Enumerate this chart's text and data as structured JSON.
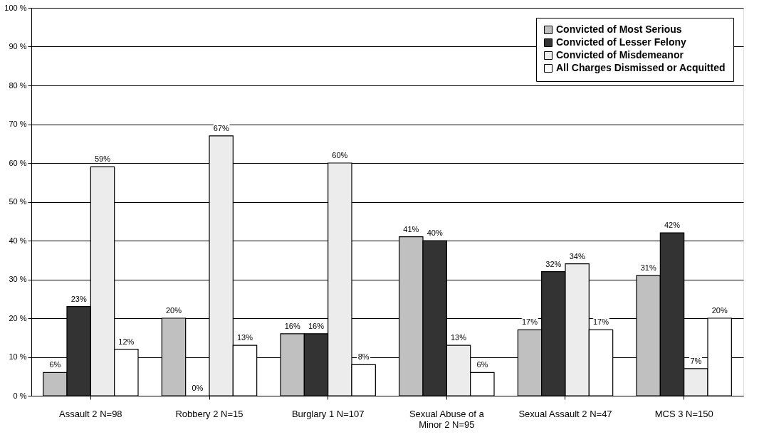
{
  "chart_data": {
    "type": "bar",
    "categories": [
      "Assault 2 N=98",
      "Robbery 2 N=15",
      "Burglary 1 N=107",
      "Sexual Abuse of a Minor 2 N=95",
      "Sexual Assault 2 N=47",
      "MCS 3 N=150"
    ],
    "series": [
      {
        "name": "Convicted of Most Serious",
        "color": "#c0c0c0",
        "values": [
          6,
          20,
          16,
          41,
          17,
          31
        ],
        "value_labels": [
          "6%",
          "20%",
          "16%",
          "41%",
          "17%",
          "31%"
        ]
      },
      {
        "name": "Convicted of Lesser Felony",
        "color": "#333333",
        "values": [
          23,
          0,
          16,
          40,
          32,
          42
        ],
        "value_labels": [
          "23%",
          "0%",
          "16%",
          "40%",
          "32%",
          "42%"
        ]
      },
      {
        "name": "Convicted of Misdemeanor",
        "color": "#ececec",
        "values": [
          59,
          67,
          60,
          13,
          34,
          7
        ],
        "value_labels": [
          "59%",
          "67%",
          "60%",
          "13%",
          "34%",
          "7%"
        ]
      },
      {
        "name": "All Charges Dismissed or Acquitted",
        "color": "#ffffff",
        "values": [
          12,
          13,
          8,
          6,
          17,
          20
        ],
        "value_labels": [
          "12%",
          "13%",
          "8%",
          "6%",
          "17%",
          "20%"
        ]
      }
    ],
    "ylim": [
      0,
      100
    ],
    "yticks": [
      {
        "value": 0,
        "label": "0 %"
      },
      {
        "value": 10,
        "label": "10 %"
      },
      {
        "value": 20,
        "label": "20 %"
      },
      {
        "value": 30,
        "label": "30 %"
      },
      {
        "value": 40,
        "label": "40 %"
      },
      {
        "value": 50,
        "label": "50 %"
      },
      {
        "value": 60,
        "label": "60 %"
      },
      {
        "value": 70,
        "label": "70 %"
      },
      {
        "value": 80,
        "label": "80 %"
      },
      {
        "value": 90,
        "label": "90 %"
      },
      {
        "value": 100,
        "label": "100 %"
      }
    ],
    "grid": "y",
    "legend": "top right"
  }
}
